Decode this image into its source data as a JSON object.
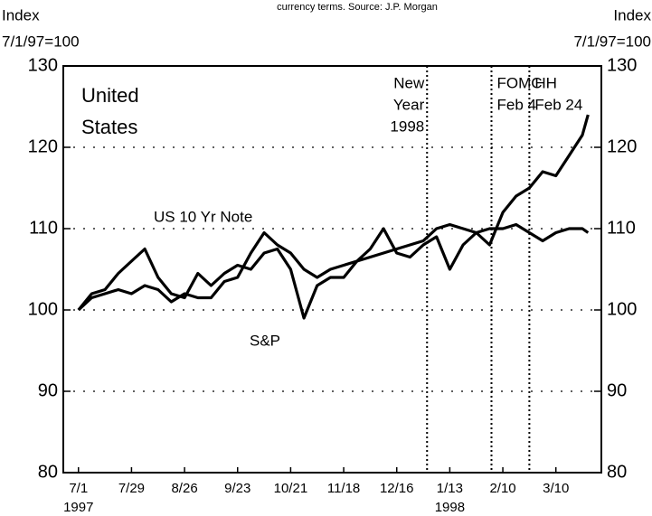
{
  "chart_data": {
    "type": "line",
    "subtitle": "currency terms. Source: J.P. Morgan",
    "ylabel": [
      "Index",
      "7/1/97=100"
    ],
    "y2label": [
      "Index",
      "7/1/97=100"
    ],
    "annotation": [
      "United",
      "States"
    ],
    "x": [
      "1997-07-01",
      "1997-07-08",
      "1997-07-15",
      "1997-07-22",
      "1997-07-29",
      "1997-08-05",
      "1997-08-12",
      "1997-08-19",
      "1997-08-26",
      "1997-09-02",
      "1997-09-09",
      "1997-09-16",
      "1997-09-23",
      "1997-09-30",
      "1997-10-07",
      "1997-10-14",
      "1997-10-21",
      "1997-10-28",
      "1997-11-04",
      "1997-11-11",
      "1997-11-18",
      "1997-11-25",
      "1997-12-02",
      "1997-12-09",
      "1997-12-16",
      "1997-12-23",
      "1997-12-30",
      "1998-01-06",
      "1998-01-13",
      "1998-01-20",
      "1998-01-27",
      "1998-02-03",
      "1998-02-10",
      "1998-02-17",
      "1998-02-24",
      "1998-03-03",
      "1998-03-10",
      "1998-03-17",
      "1998-03-24",
      "1998-03-27"
    ],
    "series": [
      {
        "name": "US 10 Yr Note",
        "color": "#000000",
        "values": [
          100,
          101.5,
          102,
          102.5,
          102,
          103,
          102.5,
          101,
          102,
          101.5,
          101.5,
          103.5,
          104,
          107,
          109.5,
          108,
          107,
          105,
          104,
          105,
          105.5,
          106,
          106.5,
          107,
          107.5,
          108,
          108.5,
          110,
          110.5,
          110,
          109.5,
          110,
          110,
          110.5,
          109.5,
          108.5,
          109.5,
          110,
          110,
          109.5
        ]
      },
      {
        "name": "S&P",
        "color": "#000000",
        "values": [
          100,
          102,
          102.5,
          104.5,
          106,
          107.5,
          104,
          102,
          101.5,
          104.5,
          103,
          104.5,
          105.5,
          105,
          107,
          107.5,
          105,
          99,
          103,
          104,
          104,
          106,
          107.5,
          110,
          107,
          106.5,
          108,
          109,
          105,
          108,
          109.5,
          108,
          112,
          114,
          115,
          117,
          116.5,
          119,
          121.5,
          124
        ]
      }
    ],
    "events": [
      {
        "x": "1998-01-01",
        "label": [
          "New",
          "Year",
          "1998"
        ]
      },
      {
        "x": "1998-02-04",
        "label": [
          "FOMC",
          "Feb 4"
        ]
      },
      {
        "x": "1998-02-24",
        "label": [
          "HH",
          "Feb 24"
        ]
      }
    ],
    "xlim": [
      "1997-06-23",
      "1998-04-03"
    ],
    "xticks": [
      {
        "value": "1997-07-01",
        "label": "7/1"
      },
      {
        "value": "1997-07-29",
        "label": "7/29"
      },
      {
        "value": "1997-08-26",
        "label": "8/26"
      },
      {
        "value": "1997-09-23",
        "label": "9/23"
      },
      {
        "value": "1997-10-21",
        "label": "10/21"
      },
      {
        "value": "1997-11-18",
        "label": "11/18"
      },
      {
        "value": "1997-12-16",
        "label": "12/16"
      },
      {
        "value": "1998-01-13",
        "label": "1/13"
      },
      {
        "value": "1998-02-10",
        "label": "2/10"
      },
      {
        "value": "1998-03-10",
        "label": "3/10"
      }
    ],
    "year_labels": [
      {
        "x": "1997-07-01",
        "text": "1997"
      },
      {
        "x": "1998-01-13",
        "text": "1998"
      }
    ],
    "ylim": [
      80,
      130
    ],
    "yticks": [
      80,
      90,
      100,
      110,
      120,
      130
    ],
    "y2lim": [
      80,
      130
    ],
    "y2ticks": [
      80,
      90,
      100,
      110,
      120,
      130
    ],
    "grid": true
  }
}
